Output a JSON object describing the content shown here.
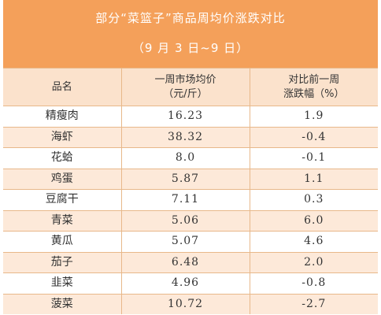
{
  "chart_data": {
    "type": "table",
    "title": "部分“菜篮子”商品周均价涨跌对比",
    "subtitle": "（9 月 3 日~9 日）",
    "columns": [
      "品名",
      "一周市场均价（元/斤）",
      "对比前一周涨跌幅（%）"
    ],
    "column_lines": [
      [
        "品名"
      ],
      [
        "一周市场均价",
        "（元/斤）"
      ],
      [
        "对比前一周",
        "涨跌幅（%）"
      ]
    ],
    "rows": [
      {
        "name": "精瘦肉",
        "price": "16.23",
        "change": "1.9"
      },
      {
        "name": "海虾",
        "price": "38.32",
        "change": "-0.4"
      },
      {
        "name": "花蛤",
        "price": "8.0",
        "change": "-0.1"
      },
      {
        "name": "鸡蛋",
        "price": "5.87",
        "change": "1.1"
      },
      {
        "name": "豆腐干",
        "price": "7.11",
        "change": "0.3"
      },
      {
        "name": "青菜",
        "price": "5.06",
        "change": "6.0"
      },
      {
        "name": "黄瓜",
        "price": "5.07",
        "change": "4.6"
      },
      {
        "name": "茄子",
        "price": "6.48",
        "change": "2.0"
      },
      {
        "name": "韭菜",
        "price": "4.96",
        "change": "-0.8"
      },
      {
        "name": "菠菜",
        "price": "10.72",
        "change": "-2.7"
      }
    ]
  },
  "colors": {
    "header_bg": "#f4a05a",
    "column_header_bg": "#fbe2cc",
    "row_alt_bg": "#fde9d9",
    "grid": "#e8b88a"
  }
}
